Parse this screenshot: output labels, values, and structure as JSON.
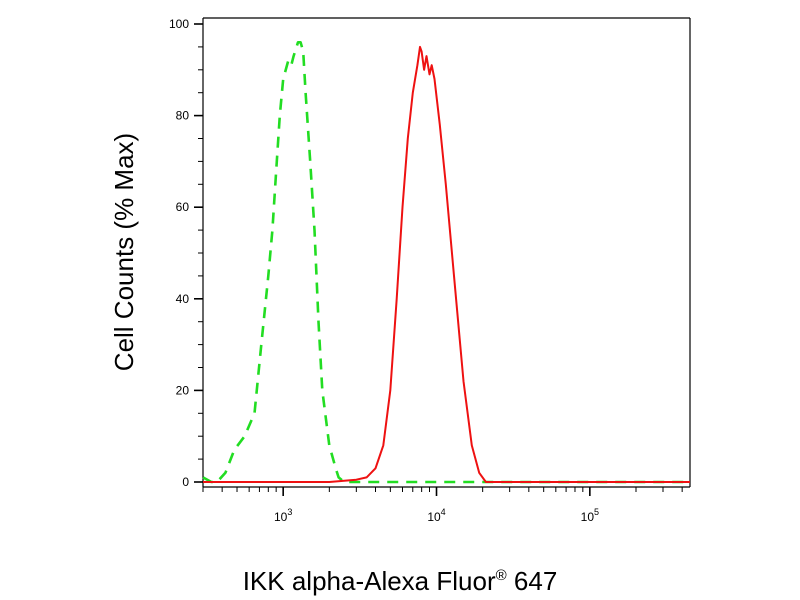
{
  "chart_data": {
    "type": "line",
    "title": "",
    "xlabel": "IKK alpha-Alexa Fluor",
    "xlabel_mark": "®",
    "xlabel_suffix": " 647",
    "ylabel": "Cell Counts (% Max)",
    "xscale": "log",
    "xlim": [
      300,
      450000
    ],
    "ylim": [
      0,
      100
    ],
    "grid": false,
    "legend": "none",
    "y_ticks": [
      0,
      20,
      40,
      60,
      80,
      100
    ],
    "y_tick_labels": [
      "0",
      "20",
      "40",
      "60",
      "80",
      "100"
    ],
    "x_ticks": [
      {
        "value": 1000,
        "base": "10",
        "exp": "3"
      },
      {
        "value": 10000,
        "base": "10",
        "exp": "4"
      },
      {
        "value": 100000,
        "base": "10",
        "exp": "5"
      }
    ],
    "series": [
      {
        "color": "#22dd22",
        "dash": "dashed",
        "x": [
          300,
          340,
          370,
          420,
          480,
          560,
          650,
          720,
          800,
          850,
          900,
          950,
          1000,
          1080,
          1130,
          1170,
          1250,
          1300,
          1350,
          1400,
          1500,
          1600,
          1700,
          1800,
          2000,
          2200,
          2300,
          2500,
          2800,
          3500,
          5000,
          10000,
          20000,
          50000,
          100000,
          200000,
          450000
        ],
        "y": [
          1,
          0,
          0,
          2,
          7,
          10,
          15,
          30,
          45,
          55,
          68,
          80,
          88,
          92,
          91,
          93,
          96,
          96,
          94,
          85,
          70,
          55,
          35,
          20,
          8,
          3,
          1,
          0,
          0,
          0,
          0,
          0,
          0,
          0,
          0,
          0,
          0
        ]
      },
      {
        "color": "#ee1111",
        "dash": "solid",
        "x": [
          300,
          1000,
          2000,
          3000,
          3500,
          4000,
          4500,
          5000,
          5500,
          6000,
          6500,
          7000,
          7500,
          7800,
          8000,
          8300,
          8600,
          9000,
          9300,
          9700,
          10500,
          11500,
          13000,
          15000,
          17000,
          19000,
          21000,
          25000,
          50000,
          100000,
          200000,
          450000
        ],
        "y": [
          0,
          0,
          0,
          0.5,
          1,
          3,
          8,
          20,
          40,
          60,
          75,
          85,
          91,
          95,
          94,
          90,
          93,
          89,
          91,
          88,
          78,
          65,
          45,
          22,
          8,
          2,
          0,
          0,
          0,
          0,
          0,
          0
        ]
      }
    ]
  }
}
